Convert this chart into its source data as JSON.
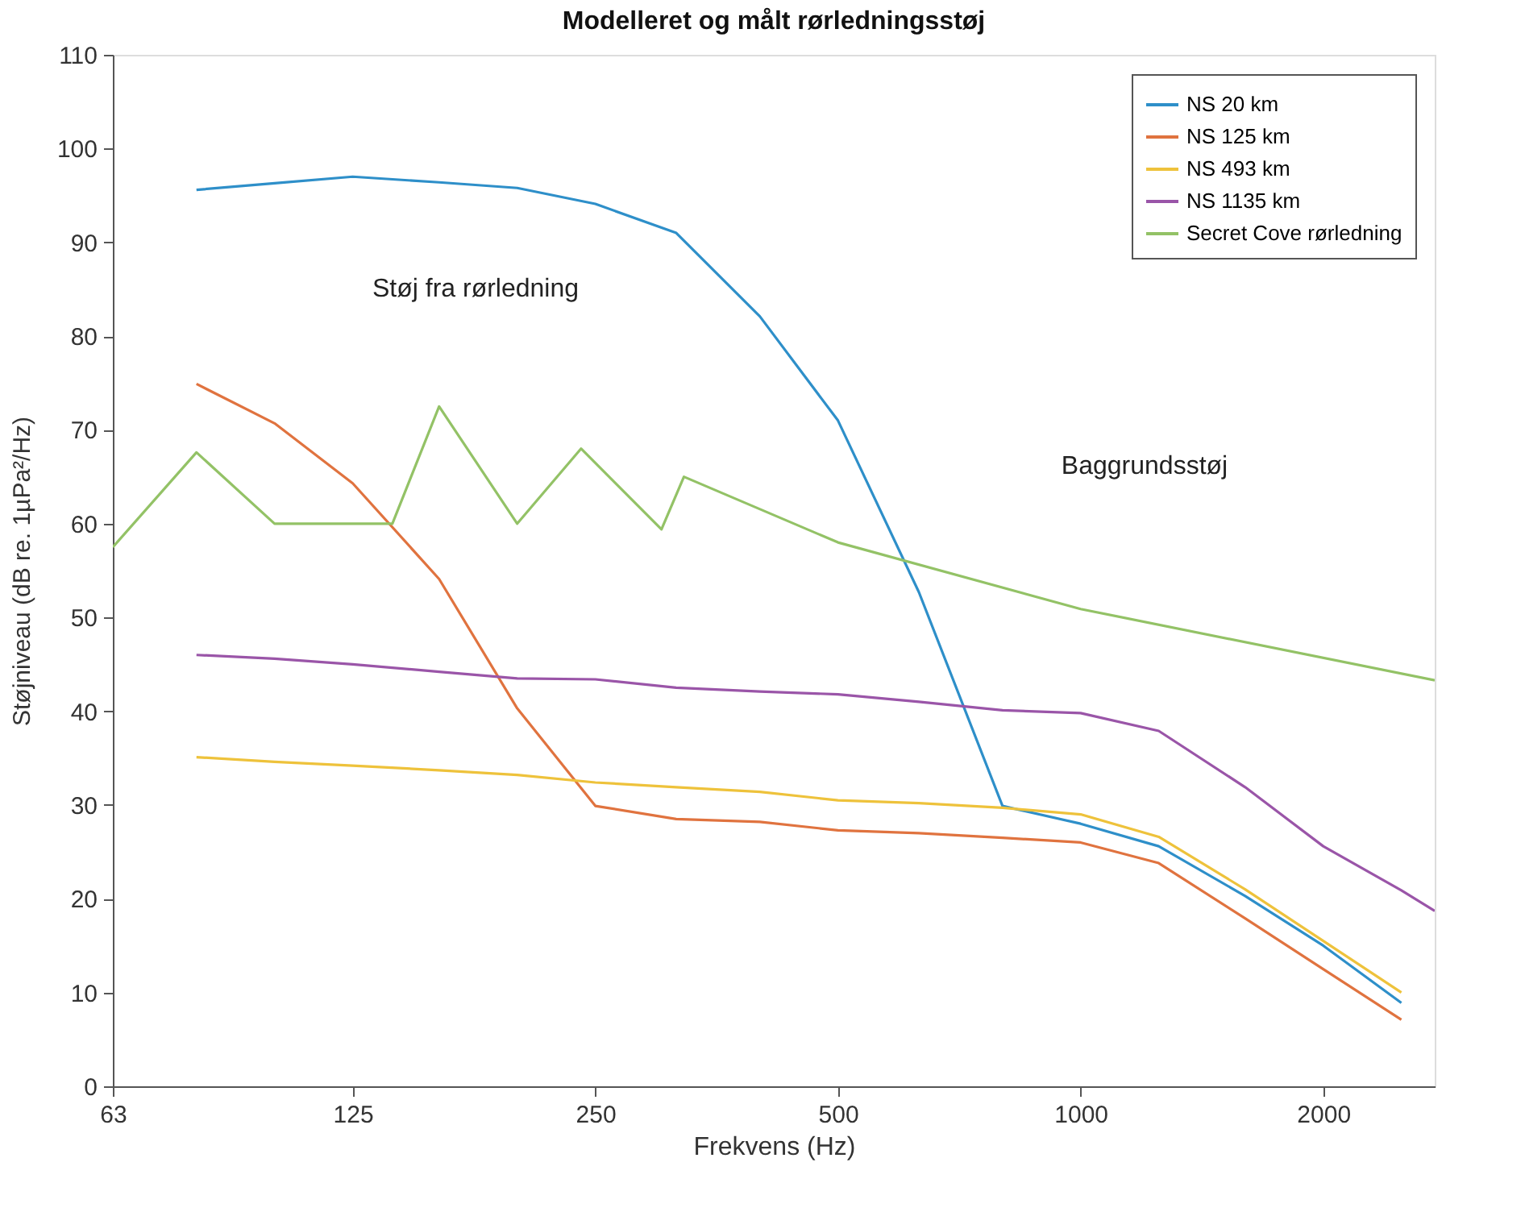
{
  "chart_data": {
    "type": "line",
    "title": "Modelleret og målt rørledningsstøj",
    "xlabel": "Frekvens (Hz)",
    "ylabel": "Støjniveau (dB re. 1µPa²/Hz)",
    "log": "x",
    "xlim": [
      63,
      2750
    ],
    "xticks": [
      63,
      125,
      250,
      500,
      1000,
      2000
    ],
    "ylim": [
      0,
      110
    ],
    "yticks": [
      0,
      10,
      20,
      30,
      40,
      50,
      60,
      70,
      80,
      90,
      100,
      110
    ],
    "grid": false,
    "legend": "top right",
    "line_style": "solid",
    "marker": "none",
    "x": [
      80,
      100,
      125,
      160,
      200,
      250,
      315,
      400,
      500,
      630,
      800,
      1000,
      1250,
      1600,
      2000,
      2500
    ],
    "series": [
      {
        "name": "NS 20 km",
        "color": "#2e8fc9",
        "values": [
          95.6,
          96.3,
          97,
          96.4,
          95.8,
          94.1,
          91,
          82.1,
          71,
          52.7,
          29.9,
          28,
          25.6,
          20.3,
          15,
          8.9
        ]
      },
      {
        "name": "NS 125 km",
        "color": "#e0733f",
        "values": [
          74.9,
          70.7,
          64.3,
          54.1,
          40.3,
          29.9,
          28.5,
          28.2,
          27.3,
          27,
          26.5,
          26,
          23.8,
          17.9,
          12.5,
          7.1
        ]
      },
      {
        "name": "NS 493 km",
        "color": "#eec23b",
        "values": [
          35.1,
          34.6,
          34.2,
          33.7,
          33.2,
          32.4,
          31.9,
          31.4,
          30.5,
          30.2,
          29.7,
          29,
          26.6,
          21,
          15.5,
          10
        ]
      },
      {
        "name": "NS 1135 km",
        "color": "#9a55a8",
        "values": [
          46,
          45.6,
          45,
          44.2,
          43.5,
          43.4,
          42.5,
          42.1,
          41.8,
          41,
          40.1,
          39.8,
          37.9,
          31.9,
          25.6,
          20.9,
          18.7
        ],
        "x": [
          80,
          100,
          125,
          160,
          200,
          250,
          315,
          400,
          500,
          630,
          800,
          1000,
          1250,
          1600,
          2000,
          2500,
          2750
        ]
      },
      {
        "name": "Secret Cove rørledning",
        "color": "#93c266",
        "x": [
          63,
          80,
          100,
          140,
          160,
          200,
          240,
          302,
          322,
          500,
          1000,
          2750
        ],
        "values": [
          57.5,
          67.6,
          60,
          60,
          72.5,
          60,
          68,
          59.4,
          65,
          58,
          50.9,
          43.3
        ]
      }
    ],
    "annotations": [
      "Støj fra rørledning",
      "Baggrundsstøj"
    ]
  }
}
